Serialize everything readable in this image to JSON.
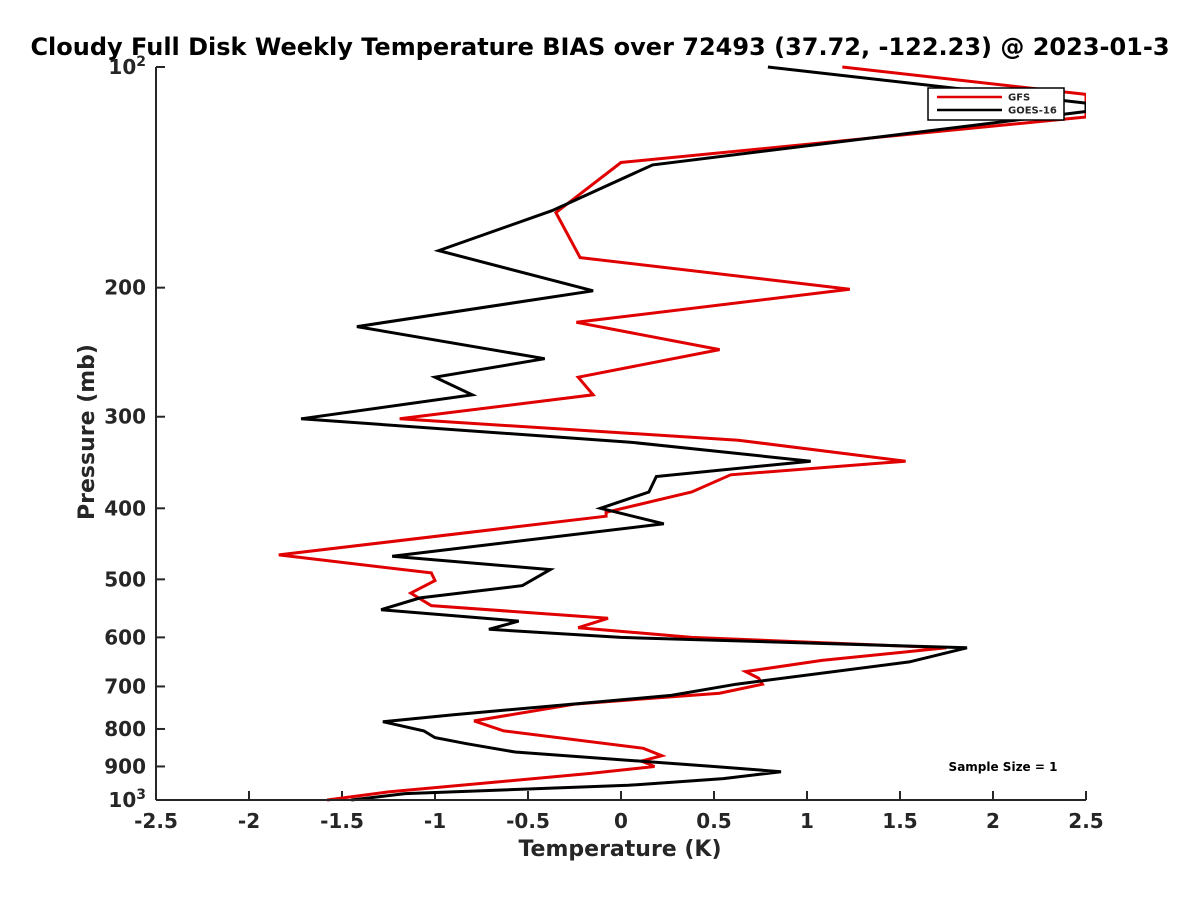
{
  "chart_data": {
    "type": "line",
    "title": "Cloudy Full Disk Weekly Temperature BIAS over 72493 (37.72, -122.23) @ 2023-01-3",
    "xlabel": "Temperature (K)",
    "ylabel": "Pressure (mb)",
    "xlim": [
      -2.5,
      2.5
    ],
    "ylim": [
      1000,
      100
    ],
    "y_scale": "log",
    "y_reversed": true,
    "grid": false,
    "legend_position": "top-right",
    "x_ticks": [
      {
        "value": -2.5,
        "label": "-2.5"
      },
      {
        "value": -2,
        "label": "-2"
      },
      {
        "value": -1.5,
        "label": "-1.5"
      },
      {
        "value": -1,
        "label": "-1"
      },
      {
        "value": -0.5,
        "label": "-0.5"
      },
      {
        "value": 0,
        "label": "0"
      },
      {
        "value": 0.5,
        "label": "0.5"
      },
      {
        "value": 1,
        "label": "1"
      },
      {
        "value": 1.5,
        "label": "1.5"
      },
      {
        "value": 2,
        "label": "2"
      },
      {
        "value": 2.5,
        "label": "2.5"
      }
    ],
    "y_ticks": [
      {
        "value": 100,
        "base": "10",
        "exp": "2"
      },
      {
        "value": 200,
        "label": "200"
      },
      {
        "value": 300,
        "label": "300"
      },
      {
        "value": 400,
        "label": "400"
      },
      {
        "value": 500,
        "label": "500"
      },
      {
        "value": 600,
        "label": "600"
      },
      {
        "value": 700,
        "label": "700"
      },
      {
        "value": 800,
        "label": "800"
      },
      {
        "value": 900,
        "label": "900"
      },
      {
        "value": 1000,
        "base": "10",
        "exp": "3"
      }
    ],
    "annotation": "Sample Size = 1",
    "series": [
      {
        "name": "GFS",
        "color": "#e00000",
        "points": [
          {
            "x": 1.19,
            "p": 100
          },
          {
            "x": 2.5,
            "p": 109
          },
          {
            "x": 2.5,
            "p": 117
          },
          {
            "x": 0.0,
            "p": 135
          },
          {
            "x": -0.35,
            "p": 158
          },
          {
            "x": -0.22,
            "p": 182
          },
          {
            "x": 1.23,
            "p": 201
          },
          {
            "x": -0.24,
            "p": 223
          },
          {
            "x": 0.53,
            "p": 243
          },
          {
            "x": -0.23,
            "p": 265
          },
          {
            "x": -0.15,
            "p": 280
          },
          {
            "x": -1.19,
            "p": 302
          },
          {
            "x": 0.63,
            "p": 323
          },
          {
            "x": 1.53,
            "p": 345
          },
          {
            "x": 0.59,
            "p": 360
          },
          {
            "x": 0.38,
            "p": 380
          },
          {
            "x": -0.08,
            "p": 405
          },
          {
            "x": -0.08,
            "p": 410
          },
          {
            "x": -1.84,
            "p": 463
          },
          {
            "x": -1.02,
            "p": 490
          },
          {
            "x": -1.0,
            "p": 502
          },
          {
            "x": -1.13,
            "p": 522
          },
          {
            "x": -1.02,
            "p": 543
          },
          {
            "x": -0.07,
            "p": 565
          },
          {
            "x": -0.23,
            "p": 582
          },
          {
            "x": 0.38,
            "p": 600
          },
          {
            "x": 1.75,
            "p": 620
          },
          {
            "x": 1.08,
            "p": 645
          },
          {
            "x": 0.67,
            "p": 668
          },
          {
            "x": 0.74,
            "p": 682
          },
          {
            "x": 0.76,
            "p": 695
          },
          {
            "x": 0.53,
            "p": 715
          },
          {
            "x": -0.25,
            "p": 740
          },
          {
            "x": -0.79,
            "p": 780
          },
          {
            "x": -0.63,
            "p": 805
          },
          {
            "x": 0.12,
            "p": 850
          },
          {
            "x": 0.22,
            "p": 870
          },
          {
            "x": 0.11,
            "p": 885
          },
          {
            "x": 0.18,
            "p": 900
          },
          {
            "x": -0.17,
            "p": 920
          },
          {
            "x": -1.25,
            "p": 975
          },
          {
            "x": -1.58,
            "p": 1000
          }
        ]
      },
      {
        "name": "GOES-16",
        "color": "#000000",
        "points": [
          {
            "x": 0.79,
            "p": 100
          },
          {
            "x": 2.5,
            "p": 112
          },
          {
            "x": 2.5,
            "p": 115
          },
          {
            "x": 0.17,
            "p": 136
          },
          {
            "x": -0.37,
            "p": 157
          },
          {
            "x": -0.98,
            "p": 178
          },
          {
            "x": -0.15,
            "p": 202
          },
          {
            "x": -1.42,
            "p": 226
          },
          {
            "x": -0.41,
            "p": 250
          },
          {
            "x": -1.0,
            "p": 265
          },
          {
            "x": -0.8,
            "p": 280
          },
          {
            "x": -1.72,
            "p": 302
          },
          {
            "x": 0.05,
            "p": 325
          },
          {
            "x": 1.02,
            "p": 345
          },
          {
            "x": 0.19,
            "p": 362
          },
          {
            "x": 0.15,
            "p": 380
          },
          {
            "x": -0.11,
            "p": 400
          },
          {
            "x": 0.23,
            "p": 420
          },
          {
            "x": -1.23,
            "p": 465
          },
          {
            "x": -0.38,
            "p": 485
          },
          {
            "x": -0.53,
            "p": 510
          },
          {
            "x": -1.08,
            "p": 530
          },
          {
            "x": -1.29,
            "p": 550
          },
          {
            "x": -0.55,
            "p": 570
          },
          {
            "x": -0.71,
            "p": 585
          },
          {
            "x": 0.0,
            "p": 600
          },
          {
            "x": 1.86,
            "p": 620
          },
          {
            "x": 1.55,
            "p": 648
          },
          {
            "x": 0.62,
            "p": 695
          },
          {
            "x": 0.27,
            "p": 720
          },
          {
            "x": -0.9,
            "p": 765
          },
          {
            "x": -1.28,
            "p": 782
          },
          {
            "x": -1.06,
            "p": 805
          },
          {
            "x": -1.0,
            "p": 822
          },
          {
            "x": -0.83,
            "p": 838
          },
          {
            "x": -0.57,
            "p": 860
          },
          {
            "x": 0.5,
            "p": 900
          },
          {
            "x": 0.86,
            "p": 915
          },
          {
            "x": 0.55,
            "p": 935
          },
          {
            "x": 0.04,
            "p": 955
          },
          {
            "x": -1.16,
            "p": 980
          },
          {
            "x": -1.45,
            "p": 1000
          }
        ]
      }
    ]
  }
}
